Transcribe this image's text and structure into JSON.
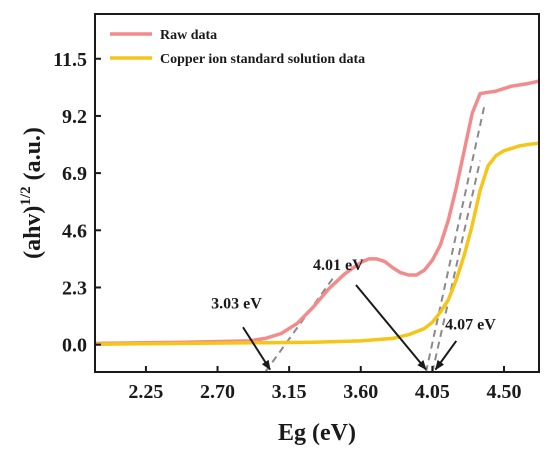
{
  "chart_data": {
    "type": "line",
    "xlabel": "Eg (eV)",
    "ylabel_base": "(ahv)",
    "ylabel_sup": "1/2",
    "ylabel_unit": "(a.u.)",
    "xlim": [
      1.93,
      4.72
    ],
    "ylim": [
      -1.1,
      13.3
    ],
    "x_ticks": [
      2.25,
      2.7,
      3.15,
      3.6,
      4.05,
      4.5
    ],
    "x_tick_labels": [
      "2.25",
      "2.70",
      "3.15",
      "3.60",
      "4.05",
      "4.50"
    ],
    "y_ticks": [
      0.0,
      2.3,
      4.6,
      6.9,
      9.2,
      11.5
    ],
    "y_tick_labels": [
      "0.0",
      "2.3",
      "4.6",
      "6.9",
      "9.2",
      "11.5"
    ],
    "legend_position": "top-left",
    "series": [
      {
        "name": "Raw data",
        "color": "#f28b8b",
        "x": [
          1.93,
          2.5,
          2.9,
          3.0,
          3.1,
          3.2,
          3.3,
          3.4,
          3.5,
          3.6,
          3.65,
          3.7,
          3.75,
          3.8,
          3.85,
          3.9,
          3.95,
          4.0,
          4.05,
          4.1,
          4.15,
          4.2,
          4.25,
          4.3,
          4.35,
          4.4,
          4.45,
          4.5,
          4.55,
          4.6,
          4.65,
          4.72
        ],
        "y": [
          0.05,
          0.1,
          0.15,
          0.25,
          0.45,
          0.85,
          1.5,
          2.25,
          2.85,
          3.3,
          3.45,
          3.45,
          3.35,
          3.1,
          2.9,
          2.8,
          2.8,
          3.0,
          3.4,
          4.0,
          5.0,
          6.3,
          7.8,
          9.3,
          10.1,
          10.15,
          10.2,
          10.3,
          10.4,
          10.45,
          10.5,
          10.6
        ]
      },
      {
        "name": "Copper ion standard solution data",
        "color": "#f5c518",
        "x": [
          1.93,
          2.5,
          3.0,
          3.3,
          3.6,
          3.8,
          3.9,
          4.0,
          4.05,
          4.1,
          4.15,
          4.2,
          4.25,
          4.3,
          4.35,
          4.4,
          4.45,
          4.5,
          4.55,
          4.6,
          4.65,
          4.72
        ],
        "y": [
          0.02,
          0.05,
          0.08,
          0.1,
          0.15,
          0.25,
          0.4,
          0.65,
          0.9,
          1.3,
          1.8,
          2.6,
          3.6,
          4.8,
          6.2,
          7.2,
          7.6,
          7.8,
          7.9,
          8.0,
          8.05,
          8.1
        ]
      }
    ],
    "tangent_lines": [
      {
        "x": [
          3.0,
          3.44
        ],
        "y": [
          -1.1,
          2.8
        ]
      },
      {
        "x": [
          4.01,
          4.38
        ],
        "y": [
          -1.1,
          9.7
        ]
      },
      {
        "x": [
          4.05,
          4.35
        ],
        "y": [
          -1.1,
          7.4
        ]
      }
    ],
    "annotations": [
      {
        "label": "3.03 eV",
        "text_x": 2.66,
        "text_y": 1.45,
        "arrow_from": [
          2.86,
          0.7
        ],
        "arrow_to": [
          3.03,
          -1.0
        ]
      },
      {
        "label": "4.01 eV",
        "text_x": 3.3,
        "text_y": 3.0,
        "arrow_from": [
          3.57,
          2.4
        ],
        "arrow_to": [
          4.01,
          -1.0
        ]
      },
      {
        "label": "4.07 eV",
        "text_x": 4.13,
        "text_y": 0.6,
        "arrow_from": [
          4.2,
          0.15
        ],
        "arrow_to": [
          4.07,
          -1.0
        ]
      }
    ]
  }
}
